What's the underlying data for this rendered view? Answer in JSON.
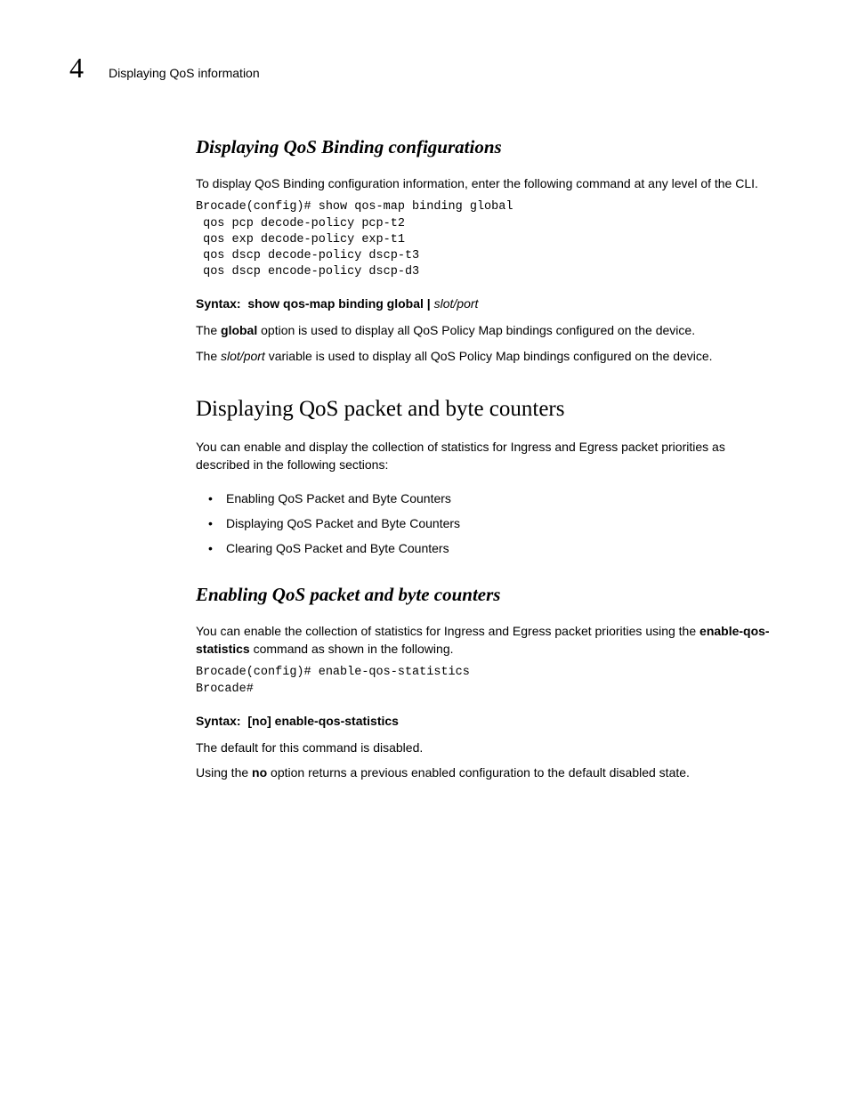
{
  "header": {
    "chapter_number": "4",
    "running_head": "Displaying QoS information"
  },
  "section1": {
    "title": "Displaying QoS Binding configurations",
    "intro": "To display QoS Binding configuration information, enter the following command at any level of the CLI.",
    "code": "Brocade(config)# show qos-map binding global\n qos pcp decode-policy pcp-t2\n qos exp decode-policy exp-t1\n qos dscp decode-policy dscp-t3\n qos dscp encode-policy dscp-d3",
    "syntax_label": "Syntax:",
    "syntax_bold": "show qos-map binding global |",
    "syntax_italic": "slot/port",
    "p1_a": "The ",
    "p1_b": "global",
    "p1_c": " option is used to display all QoS Policy Map bindings configured on the device.",
    "p2_a": "The ",
    "p2_b": "slot/port",
    "p2_c": " variable is used to display all QoS Policy Map bindings configured on the device."
  },
  "section2": {
    "title": "Displaying QoS packet and byte counters",
    "intro": "You can enable and display the collection of statistics for Ingress and Egress packet priorities as described in the following sections:",
    "bullets": [
      "Enabling QoS Packet and Byte Counters",
      "Displaying QoS Packet and Byte Counters",
      "Clearing QoS Packet and Byte Counters"
    ]
  },
  "section3": {
    "title": "Enabling QoS packet and byte counters",
    "intro_a": "You can enable the collection of statistics for Ingress and Egress packet priorities using the ",
    "intro_b": "enable-qos-statistics",
    "intro_c": " command as shown in the following.",
    "code": "Brocade(config)# enable-qos-statistics\nBrocade#",
    "syntax_label": "Syntax:",
    "syntax_bold": "[no] enable-qos-statistics",
    "p1": "The default for this command is disabled.",
    "p2_a": "Using the ",
    "p2_b": "no",
    "p2_c": " option returns a previous enabled configuration to the default disabled state."
  }
}
